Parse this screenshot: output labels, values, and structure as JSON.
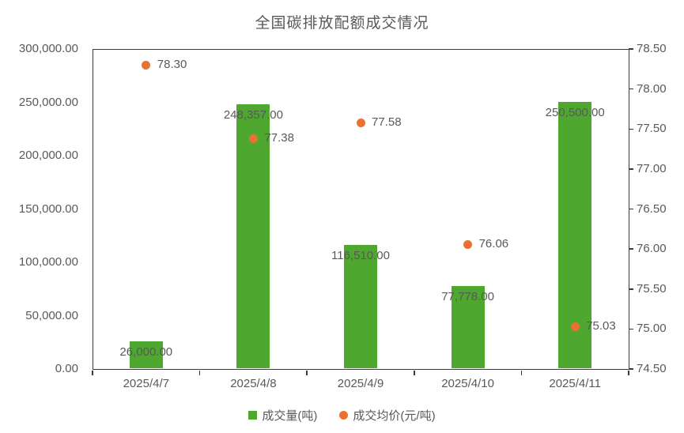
{
  "title": "全国碳排放配额成交情况",
  "chart_data": {
    "type": "bar",
    "title": "全国碳排放配额成交情况",
    "categories": [
      "2025/4/7",
      "2025/4/8",
      "2025/4/9",
      "2025/4/10",
      "2025/4/11"
    ],
    "series": [
      {
        "name": "成交量(吨)",
        "type": "bar",
        "axis": "left",
        "color": "#4EA72E",
        "values": [
          26000,
          248357,
          116510,
          77778,
          250500
        ],
        "labels": [
          "26,000.00",
          "248,357.00",
          "116,510.00",
          "77,778.00",
          "250,500.00"
        ]
      },
      {
        "name": "成交均价(元/吨)",
        "type": "scatter",
        "axis": "right",
        "color": "#E97132",
        "values": [
          78.3,
          77.38,
          77.58,
          76.06,
          75.03
        ],
        "labels": [
          "78.30",
          "77.38",
          "77.58",
          "76.06",
          "75.03"
        ]
      }
    ],
    "left_axis": {
      "min": 0,
      "max": 300000,
      "step": 50000,
      "tick_labels": [
        "300,000.00",
        "250,000.00",
        "200,000.00",
        "150,000.00",
        "100,000.00",
        "50,000.00",
        "0.00"
      ]
    },
    "right_axis": {
      "min": 74.5,
      "max": 78.5,
      "step": 0.5,
      "tick_labels": [
        "78.50",
        "78.00",
        "77.50",
        "77.00",
        "76.50",
        "76.00",
        "75.50",
        "75.00",
        "74.50"
      ]
    },
    "grid": false,
    "legend_position": "bottom",
    "legend": [
      {
        "label": "成交量(吨)",
        "marker": "square",
        "color": "#4EA72E"
      },
      {
        "label": "成交均价(元/吨)",
        "marker": "circle",
        "color": "#E97132"
      }
    ]
  }
}
